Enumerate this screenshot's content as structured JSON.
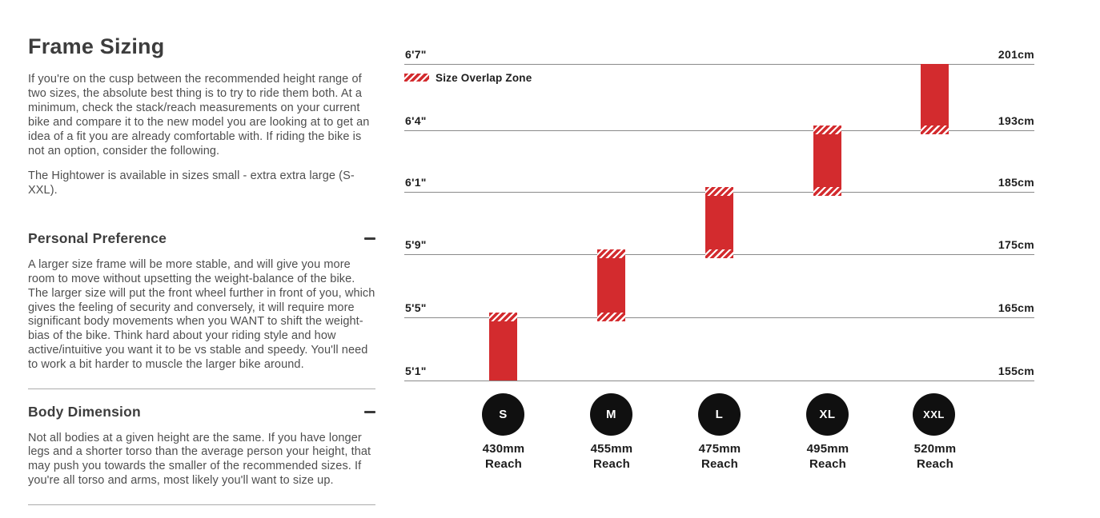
{
  "colors": {
    "accent_red": "#d32b2e",
    "heading_text": "#3d3d3d",
    "body_text": "#4e4e4e",
    "chart_label_text": "#1d1d1d",
    "gridline": "#8a8a8a",
    "circle_fill": "#101010"
  },
  "left": {
    "title": "Frame Sizing",
    "intro": "If you're on the cusp between the recommended height range of two sizes, the absolute best thing is to try to ride them both. At a minimum, check the stack/reach measurements on your current bike and compare it to the new model you are looking at to get an idea of a fit you are already comfortable with. If riding the bike is not an option, consider the following.",
    "availability": "The Hightower is available in sizes small - extra extra large (S-XXL).",
    "sections": [
      {
        "heading": "Personal Preference",
        "body": "A larger size frame will be more stable, and will give you more room to move without upsetting the weight-balance of the bike. The larger size will put the front wheel further in front of you, which gives the feeling of security and conversely, it will require more significant body movements when you WANT to shift the weight-bias of the bike. Think hard about your riding style and how active/intuitive you want it to be vs stable and speedy. You'll need to work a bit harder to muscle the larger bike around."
      },
      {
        "heading": "Body Dimension",
        "body": "Not all bodies at a given height are the same. If you have longer legs and a shorter torso than the average person your height, that may push you towards the smaller of the recommended sizes. If you're all torso and arms, most likely you'll want to size up."
      }
    ]
  },
  "chart": {
    "legend_label": "Size Overlap Zone",
    "rows": [
      {
        "imperial": "6'7\"",
        "metric": "201cm"
      },
      {
        "imperial": "6'4\"",
        "metric": "193cm"
      },
      {
        "imperial": "6'1\"",
        "metric": "185cm"
      },
      {
        "imperial": "5'9\"",
        "metric": "175cm"
      },
      {
        "imperial": "5'5\"",
        "metric": "165cm"
      },
      {
        "imperial": "5'1\"",
        "metric": "155cm"
      }
    ],
    "sizes": [
      {
        "label": "S",
        "reach_value": "430mm",
        "reach_word": "Reach"
      },
      {
        "label": "M",
        "reach_value": "455mm",
        "reach_word": "Reach"
      },
      {
        "label": "L",
        "reach_value": "475mm",
        "reach_word": "Reach"
      },
      {
        "label": "XL",
        "reach_value": "495mm",
        "reach_word": "Reach"
      },
      {
        "label": "XXL",
        "reach_value": "520mm",
        "reach_word": "Reach"
      }
    ]
  },
  "chart_data": {
    "type": "bar",
    "title": "",
    "legend": [
      "Size Overlap Zone"
    ],
    "legend_position": "top-left",
    "orientation": "vertical-range-bars",
    "y_axis_left_ticks": [
      "6'7\"",
      "6'4\"",
      "6'1\"",
      "5'9\"",
      "5'5\"",
      "5'1\""
    ],
    "y_axis_right_ticks": [
      "201cm",
      "193cm",
      "185cm",
      "175cm",
      "165cm",
      "155cm"
    ],
    "y_range_cm": [
      155,
      201
    ],
    "grid": true,
    "categories": [
      "S",
      "M",
      "L",
      "XL",
      "XXL"
    ],
    "series": [
      {
        "name": "S",
        "height_range_cm": [
          155,
          165
        ],
        "height_range_imperial": [
          "5'1\"",
          "5'5\""
        ],
        "overlap_at_top": true,
        "overlap_at_bottom": false,
        "reach": "430mm"
      },
      {
        "name": "M",
        "height_range_cm": [
          165,
          175
        ],
        "height_range_imperial": [
          "5'5\"",
          "5'9\""
        ],
        "overlap_at_top": true,
        "overlap_at_bottom": true,
        "reach": "455mm"
      },
      {
        "name": "L",
        "height_range_cm": [
          175,
          185
        ],
        "height_range_imperial": [
          "5'9\"",
          "6'1\""
        ],
        "overlap_at_top": true,
        "overlap_at_bottom": true,
        "reach": "475mm"
      },
      {
        "name": "XL",
        "height_range_cm": [
          185,
          193
        ],
        "height_range_imperial": [
          "6'1\"",
          "6'4\""
        ],
        "overlap_at_top": true,
        "overlap_at_bottom": true,
        "reach": "495mm"
      },
      {
        "name": "XXL",
        "height_range_cm": [
          193,
          201
        ],
        "height_range_imperial": [
          "6'4\"",
          "6'7\""
        ],
        "overlap_at_top": false,
        "overlap_at_bottom": true,
        "reach": "520mm"
      }
    ],
    "bar_color": "#d32b2e",
    "overlap_pattern": "red-white-diagonal-stripes"
  }
}
